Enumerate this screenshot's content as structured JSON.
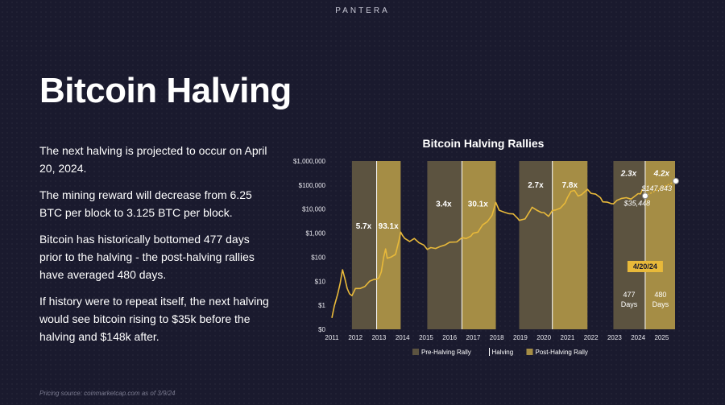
{
  "brand": "PANTERA",
  "title": "Bitcoin Halving",
  "bullets": [
    "The next halving is projected to occur on April 20, 2024.",
    "The mining reward will decrease from 6.25 BTC per block to 3.125 BTC per block.",
    "Bitcoin has historically bottomed 477 days prior to the halving - the post-halving rallies have averaged 480 days.",
    "If history were to repeat itself, the next halving would see bitcoin rising to $35k before the halving and $148k after."
  ],
  "source": "Pricing source: coinmarketcap.com as of 3/9/24",
  "colors": {
    "background": "#1a1a2e",
    "pre_band": "#5c5340",
    "post_band": "#a58d45",
    "price_line": "#e8b93a",
    "halving_line": "#ffffff"
  },
  "chart_data": {
    "type": "line",
    "title": "Bitcoin Halving Rallies",
    "y_scale": "log",
    "y_ticks": [
      {
        "value": 0,
        "label": "$0"
      },
      {
        "value": 1,
        "label": "$1"
      },
      {
        "value": 10,
        "label": "$10"
      },
      {
        "value": 100,
        "label": "$100"
      },
      {
        "value": 1000,
        "label": "$1,000"
      },
      {
        "value": 10000,
        "label": "$10,000"
      },
      {
        "value": 100000,
        "label": "$100,000"
      },
      {
        "value": 1000000,
        "label": "$1,000,000"
      }
    ],
    "x_ticks": [
      "2011",
      "2012",
      "2013",
      "2014",
      "2015",
      "2016",
      "2017",
      "2018",
      "2019",
      "2020",
      "2021",
      "2022",
      "2023",
      "2024",
      "2025"
    ],
    "xlim": [
      2011,
      2025.5
    ],
    "halvings": [
      2012.9,
      2016.52,
      2020.36,
      2024.3
    ],
    "pre_halving_bands": [
      [
        2011.85,
        2012.9
      ],
      [
        2015.05,
        2016.52
      ],
      [
        2018.95,
        2020.36
      ],
      [
        2022.95,
        2024.3
      ]
    ],
    "post_halving_bands": [
      [
        2012.9,
        2013.92
      ],
      [
        2016.52,
        2017.96
      ],
      [
        2020.36,
        2021.85
      ],
      [
        2024.3,
        2025.6
      ]
    ],
    "multipliers": [
      {
        "label": "5.7x",
        "x": 2012.35,
        "y": 1900,
        "style": "normal"
      },
      {
        "label": "93.1x",
        "x": 2013.4,
        "y": 1900,
        "style": "normal"
      },
      {
        "label": "3.4x",
        "x": 2015.75,
        "y": 16000,
        "style": "normal"
      },
      {
        "label": "30.1x",
        "x": 2017.2,
        "y": 16000,
        "style": "normal"
      },
      {
        "label": "2.7x",
        "x": 2019.65,
        "y": 100000,
        "style": "normal"
      },
      {
        "label": "7.8x",
        "x": 2021.1,
        "y": 100000,
        "style": "normal"
      },
      {
        "label": "2.3x",
        "x": 2023.6,
        "y": 300000,
        "style": "italic"
      },
      {
        "label": "4.2x",
        "x": 2025.0,
        "y": 300000,
        "style": "italic"
      }
    ],
    "price_series": [
      [
        2011.0,
        0.3
      ],
      [
        2011.1,
        0.9
      ],
      [
        2011.25,
        3
      ],
      [
        2011.35,
        8
      ],
      [
        2011.45,
        30
      ],
      [
        2011.55,
        13
      ],
      [
        2011.65,
        5
      ],
      [
        2011.75,
        3
      ],
      [
        2011.85,
        2.5
      ],
      [
        2012.0,
        5
      ],
      [
        2012.2,
        5
      ],
      [
        2012.4,
        6
      ],
      [
        2012.6,
        10
      ],
      [
        2012.8,
        12
      ],
      [
        2012.9,
        12
      ],
      [
        2013.0,
        14
      ],
      [
        2013.1,
        25
      ],
      [
        2013.2,
        100
      ],
      [
        2013.28,
        220
      ],
      [
        2013.35,
        90
      ],
      [
        2013.5,
        100
      ],
      [
        2013.7,
        130
      ],
      [
        2013.85,
        500
      ],
      [
        2013.92,
        1100
      ],
      [
        2014.0,
        800
      ],
      [
        2014.1,
        600
      ],
      [
        2014.3,
        450
      ],
      [
        2014.5,
        600
      ],
      [
        2014.7,
        400
      ],
      [
        2014.9,
        320
      ],
      [
        2015.05,
        210
      ],
      [
        2015.2,
        250
      ],
      [
        2015.4,
        230
      ],
      [
        2015.6,
        280
      ],
      [
        2015.8,
        320
      ],
      [
        2016.0,
        420
      ],
      [
        2016.3,
        430
      ],
      [
        2016.52,
        650
      ],
      [
        2016.7,
        600
      ],
      [
        2016.9,
        750
      ],
      [
        2017.0,
        1000
      ],
      [
        2017.2,
        1100
      ],
      [
        2017.4,
        2200
      ],
      [
        2017.6,
        3000
      ],
      [
        2017.8,
        5500
      ],
      [
        2017.96,
        19000
      ],
      [
        2018.1,
        9000
      ],
      [
        2018.3,
        7500
      ],
      [
        2018.5,
        6500
      ],
      [
        2018.7,
        6300
      ],
      [
        2018.9,
        4000
      ],
      [
        2018.95,
        3400
      ],
      [
        2019.2,
        3900
      ],
      [
        2019.4,
        8000
      ],
      [
        2019.5,
        12000
      ],
      [
        2019.7,
        9000
      ],
      [
        2019.9,
        7200
      ],
      [
        2020.0,
        7200
      ],
      [
        2020.2,
        5000
      ],
      [
        2020.36,
        8800
      ],
      [
        2020.5,
        9200
      ],
      [
        2020.7,
        11000
      ],
      [
        2020.9,
        18000
      ],
      [
        2021.0,
        30000
      ],
      [
        2021.15,
        55000
      ],
      [
        2021.3,
        60000
      ],
      [
        2021.45,
        35000
      ],
      [
        2021.6,
        40000
      ],
      [
        2021.85,
        67000
      ],
      [
        2022.0,
        45000
      ],
      [
        2022.2,
        42000
      ],
      [
        2022.4,
        30000
      ],
      [
        2022.5,
        20000
      ],
      [
        2022.7,
        19500
      ],
      [
        2022.85,
        17000
      ],
      [
        2022.95,
        16500
      ],
      [
        2023.1,
        23000
      ],
      [
        2023.3,
        28000
      ],
      [
        2023.5,
        30000
      ],
      [
        2023.7,
        26000
      ],
      [
        2023.9,
        37000
      ],
      [
        2024.0,
        44000
      ],
      [
        2024.1,
        43000
      ],
      [
        2024.19,
        68000
      ]
    ],
    "projection": [
      [
        2024.19,
        68000
      ],
      [
        2024.3,
        35448
      ],
      [
        2025.6,
        147843
      ]
    ],
    "projection_points": [
      {
        "x": 2024.3,
        "y": 35448,
        "label": "$35,448"
      },
      {
        "x": 2025.6,
        "y": 147843,
        "label": "$147,843"
      }
    ],
    "halving_date_label": "4/20/24",
    "days_labels": [
      {
        "x": 2023.62,
        "lines": [
          "477",
          "Days"
        ]
      },
      {
        "x": 2024.95,
        "lines": [
          "480",
          "Days"
        ]
      }
    ],
    "legend": [
      {
        "label": "Pre-Halving Rally",
        "kind": "pre"
      },
      {
        "label": "Halving",
        "kind": "halving"
      },
      {
        "label": "Post-Halving Rally",
        "kind": "post"
      }
    ]
  }
}
